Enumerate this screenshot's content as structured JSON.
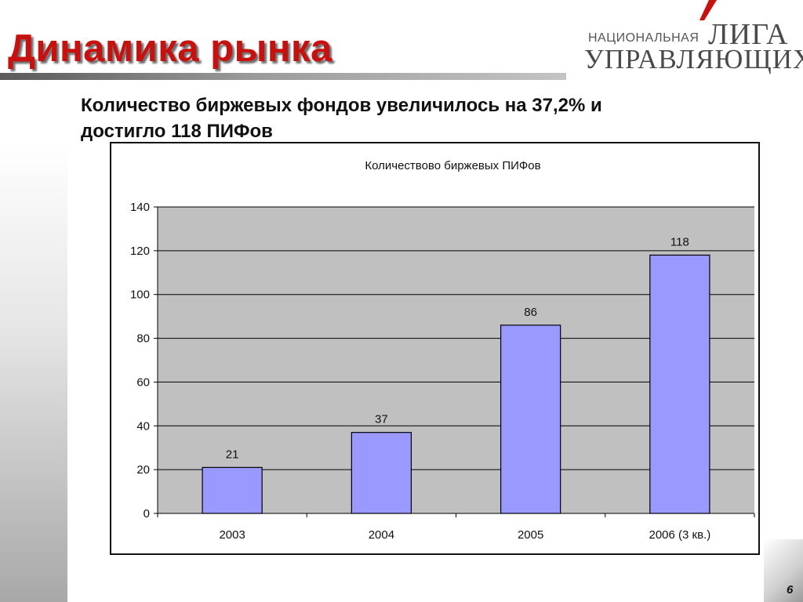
{
  "slide": {
    "title": "Динамика рынка",
    "subtitle_line1": "Количество биржевых фондов увеличилось на 37,2% и",
    "subtitle_line2": "достигло 118 ПИФов",
    "page_number": "6"
  },
  "logo": {
    "line_small": "НАЦИОНАЛЬНАЯ",
    "line_big1": "ЛИГА",
    "line_big2": "УПРАВЛЯЮЩИХ",
    "accent_color": "#c8100e"
  },
  "chart_data": {
    "type": "bar",
    "title": "Количествово биржевых ПИФов",
    "categories": [
      "2003",
      "2004",
      "2005",
      "2006 (3 кв.)"
    ],
    "values": [
      21,
      37,
      86,
      118
    ],
    "data_labels": [
      "21",
      "37",
      "86",
      "118"
    ],
    "ylim": [
      0,
      140
    ],
    "yticks": [
      0,
      20,
      40,
      60,
      80,
      100,
      120,
      140
    ],
    "ytick_labels": [
      "0",
      "20",
      "40",
      "60",
      "80",
      "100",
      "120",
      "140"
    ],
    "grid": true,
    "legend": "none",
    "bar_color": "#9999ff",
    "plot_background": "#c0c0c0"
  }
}
